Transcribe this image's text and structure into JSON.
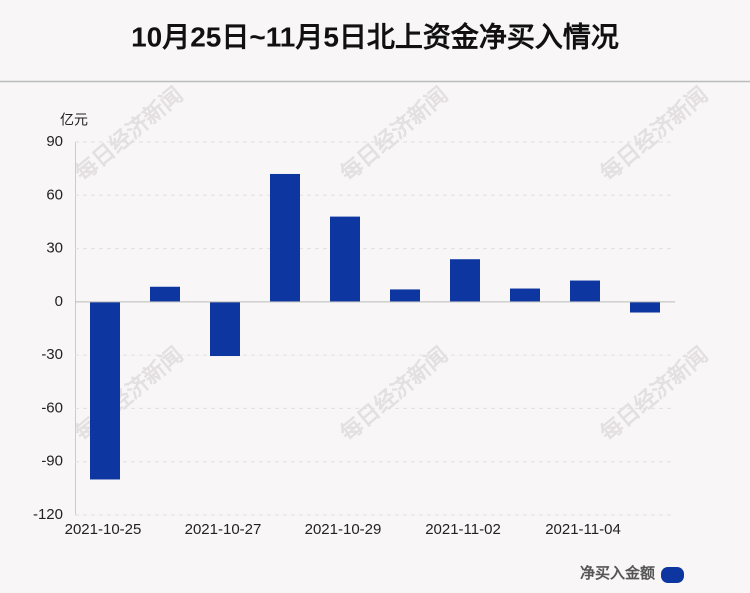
{
  "chart_data": {
    "type": "bar",
    "title": "10月25日~11月5日北上资金净买入情况",
    "y_unit": "亿元",
    "watermark": "每日经济新闻",
    "categories": [
      "2021-10-25",
      null,
      "2021-10-27",
      null,
      "2021-10-29",
      null,
      "2021-11-02",
      null,
      "2021-11-04",
      null
    ],
    "series": [
      {
        "name": "净买入金额",
        "color": "#0d36a0",
        "values": [
          -100,
          8.5,
          -30.5,
          72,
          48,
          7,
          24,
          7.5,
          12,
          -6
        ]
      }
    ],
    "ylim": [
      -120,
      90
    ],
    "yticks": [
      -120,
      -90,
      -60,
      -30,
      0,
      30,
      60,
      90
    ],
    "grid": true,
    "legend": "bottom-right"
  }
}
